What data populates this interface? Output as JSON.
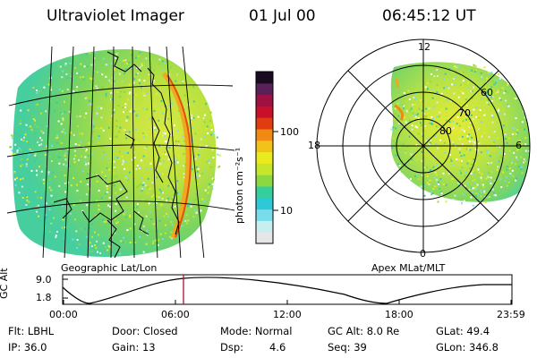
{
  "header": {
    "instrument": "Ultraviolet Imager",
    "date": "01 Jul 00",
    "time": "06:45:12 UT"
  },
  "colorbar": {
    "unit_label": "photon cm⁻²s⁻¹",
    "ticks": [
      "100",
      "10"
    ],
    "colors": [
      "#e6e6e6",
      "#c9eef0",
      "#79dcea",
      "#2dc9d8",
      "#34cf9c",
      "#8bd840",
      "#c5e62a",
      "#eaea1e",
      "#f2c11a",
      "#f08a12",
      "#e03c10",
      "#c8102a",
      "#a01040",
      "#5a2058",
      "#1a0a20"
    ]
  },
  "left_map": {
    "label": "Geographic Lat/Lon"
  },
  "right_polar": {
    "label": "Apex MLat/MLT",
    "mlt_labels": [
      "12",
      "18",
      "6",
      "0"
    ],
    "lat_labels": [
      "60",
      "70",
      "80"
    ]
  },
  "timeline": {
    "ylabel": "GC Alt",
    "y_ticks": [
      "9.0",
      "1.8"
    ],
    "x_ticks": [
      "00:00",
      "06:00",
      "12:00",
      "18:00",
      "23:59"
    ],
    "marker_color": "#b01030"
  },
  "status": {
    "flt": "Flt: LBHL",
    "ip": "IP: 36.0",
    "door": "Door: Closed",
    "gain": "Gain: 13",
    "mode": "Mode: Normal",
    "dsp_label": "Dsp:",
    "dsp_value": "4.6",
    "gc_alt": "GC Alt: 8.0 Re",
    "seq": "Seq: 39",
    "glat": "GLat: 49.4",
    "glon": "GLon: 346.8"
  }
}
